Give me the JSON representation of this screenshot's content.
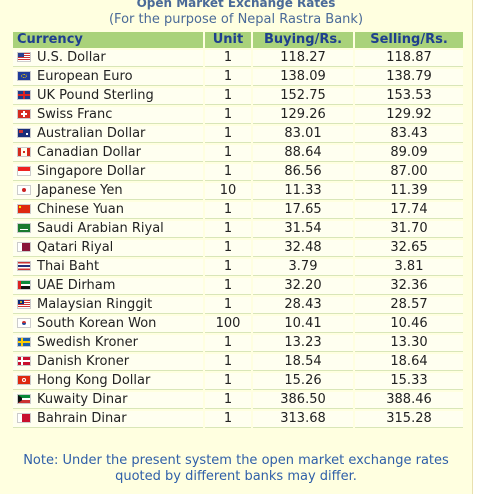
{
  "header": {
    "title": "Open Market Exchange Rates",
    "subtitle": "(For the purpose of Nepal Rastra Bank)"
  },
  "table": {
    "columns": [
      "Currency",
      "Unit",
      "Buying/Rs.",
      "Selling/Rs."
    ],
    "rows": [
      {
        "flag": "us-flag-icon",
        "currency": "U.S. Dollar",
        "unit": "1",
        "buying": "118.27",
        "selling": "118.87"
      },
      {
        "flag": "eu-flag-icon",
        "currency": "European Euro",
        "unit": "1",
        "buying": "138.09",
        "selling": "138.79"
      },
      {
        "flag": "uk-flag-icon",
        "currency": "UK Pound Sterling",
        "unit": "1",
        "buying": "152.75",
        "selling": "153.53"
      },
      {
        "flag": "swiss-flag-icon",
        "currency": "Swiss Franc",
        "unit": "1",
        "buying": "129.26",
        "selling": "129.92"
      },
      {
        "flag": "australia-flag-icon",
        "currency": "Australian Dollar",
        "unit": "1",
        "buying": "83.01",
        "selling": "83.43"
      },
      {
        "flag": "canada-flag-icon",
        "currency": "Canadian Dollar",
        "unit": "1",
        "buying": "88.64",
        "selling": "89.09"
      },
      {
        "flag": "singapore-flag-icon",
        "currency": "Singapore Dollar",
        "unit": "1",
        "buying": "86.56",
        "selling": "87.00"
      },
      {
        "flag": "japan-flag-icon",
        "currency": "Japanese Yen",
        "unit": "10",
        "buying": "11.33",
        "selling": "11.39"
      },
      {
        "flag": "china-flag-icon",
        "currency": "Chinese Yuan",
        "unit": "1",
        "buying": "17.65",
        "selling": "17.74"
      },
      {
        "flag": "saudi-flag-icon",
        "currency": "Saudi Arabian Riyal",
        "unit": "1",
        "buying": "31.54",
        "selling": "31.70"
      },
      {
        "flag": "qatar-flag-icon",
        "currency": "Qatari Riyal",
        "unit": "1",
        "buying": "32.48",
        "selling": "32.65"
      },
      {
        "flag": "thailand-flag-icon",
        "currency": "Thai Baht",
        "unit": "1",
        "buying": "3.79",
        "selling": "3.81"
      },
      {
        "flag": "uae-flag-icon",
        "currency": "UAE Dirham",
        "unit": "1",
        "buying": "32.20",
        "selling": "32.36"
      },
      {
        "flag": "malaysia-flag-icon",
        "currency": "Malaysian Ringgit",
        "unit": "1",
        "buying": "28.43",
        "selling": "28.57"
      },
      {
        "flag": "korea-flag-icon",
        "currency": "South Korean Won",
        "unit": "100",
        "buying": "10.41",
        "selling": "10.46"
      },
      {
        "flag": "sweden-flag-icon",
        "currency": "Swedish Kroner",
        "unit": "1",
        "buying": "13.23",
        "selling": "13.30"
      },
      {
        "flag": "denmark-flag-icon",
        "currency": "Danish Kroner",
        "unit": "1",
        "buying": "18.54",
        "selling": "18.64"
      },
      {
        "flag": "hongkong-flag-icon",
        "currency": "Hong Kong Dollar",
        "unit": "1",
        "buying": "15.26",
        "selling": "15.33"
      },
      {
        "flag": "kuwait-flag-icon",
        "currency": "Kuwaity Dinar",
        "unit": "1",
        "buying": "386.50",
        "selling": "388.46"
      },
      {
        "flag": "bahrain-flag-icon",
        "currency": "Bahrain Dinar",
        "unit": "1",
        "buying": "313.68",
        "selling": "315.28"
      }
    ]
  },
  "footer": {
    "note_line1": "Note: Under the present system the open market exchange rates",
    "note_line2": "quoted by different banks may differ."
  },
  "colors": {
    "panel_background": "#ffffe0",
    "header_background": "#a9d27a",
    "header_text": "#1e3f8e",
    "title_text": "#4a6a98",
    "note_text": "#2f5fa8"
  }
}
